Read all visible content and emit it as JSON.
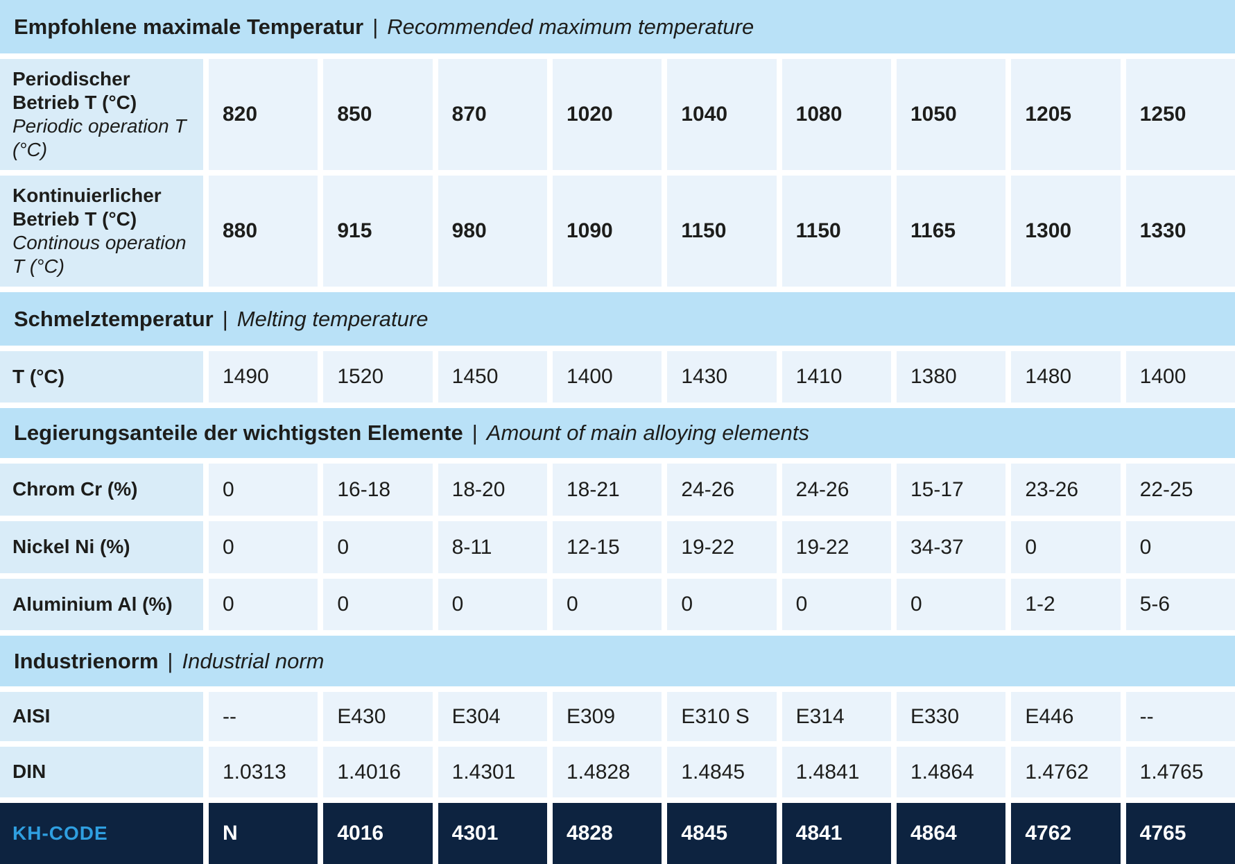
{
  "separator": "|",
  "colors": {
    "band_bg": "#b9e1f7",
    "label_bg": "#d9ecf8",
    "cell_bg": "#eaf3fb",
    "dark_row_bg": "#0d2340",
    "kh_code_label_blue": "#2f9fe0",
    "text": "#1d1d1b",
    "value_on_dark": "#ffffff"
  },
  "sections": [
    {
      "title_de": "Empfohlene maximale Temperatur",
      "title_en": "Recommended maximum temperature",
      "rows": [
        {
          "label_de": "Periodischer Betrieb T (°C)",
          "label_en": "Periodic operation T (°C)",
          "values_bold": true,
          "values": [
            "820",
            "850",
            "870",
            "1020",
            "1040",
            "1080",
            "1050",
            "1205",
            "1250"
          ]
        },
        {
          "label_de": "Kontinuierlicher Betrieb T (°C)",
          "label_en": "Continous operation T (°C)",
          "values_bold": true,
          "values": [
            "880",
            "915",
            "980",
            "1090",
            "1150",
            "1150",
            "1165",
            "1300",
            "1330"
          ]
        }
      ]
    },
    {
      "title_de": "Schmelztemperatur",
      "title_en": "Melting temperature",
      "rows": [
        {
          "label_de": "T (°C)",
          "label_en": "",
          "values_bold": false,
          "values": [
            "1490",
            "1520",
            "1450",
            "1400",
            "1430",
            "1410",
            "1380",
            "1480",
            "1400"
          ]
        }
      ]
    },
    {
      "title_de": "Legierungsanteile der wichtigsten Elemente",
      "title_en": "Amount of main alloying elements",
      "rows": [
        {
          "label_de": "Chrom Cr (%)",
          "label_en": "",
          "values_bold": false,
          "values": [
            "0",
            "16-18",
            "18-20",
            "18-21",
            "24-26",
            "24-26",
            "15-17",
            "23-26",
            "22-25"
          ]
        },
        {
          "label_de": "Nickel Ni (%)",
          "label_en": "",
          "values_bold": false,
          "values": [
            "0",
            "0",
            "8-11",
            "12-15",
            "19-22",
            "19-22",
            "34-37",
            "0",
            "0"
          ]
        },
        {
          "label_de": "Aluminium Al (%)",
          "label_en": "",
          "values_bold": false,
          "values": [
            "0",
            "0",
            "0",
            "0",
            "0",
            "0",
            "0",
            "1-2",
            "5-6"
          ]
        }
      ]
    },
    {
      "title_de": "Industrienorm",
      "title_en": "Industrial norm",
      "rows": [
        {
          "label_de": "AISI",
          "label_en": "",
          "values_bold": false,
          "values": [
            "--",
            "E430",
            "E304",
            "E309",
            "E310 S",
            "E314",
            "E330",
            "E446",
            "--"
          ]
        },
        {
          "label_de": "DIN",
          "label_en": "",
          "values_bold": false,
          "values": [
            "1.0313",
            "1.4016",
            "1.4301",
            "1.4828",
            "1.4845",
            "1.4841",
            "1.4864",
            "1.4762",
            "1.4765"
          ]
        }
      ]
    }
  ],
  "kh_code_row": {
    "label": "KH-CODE",
    "values": [
      "N",
      "4016",
      "4301",
      "4828",
      "4845",
      "4841",
      "4864",
      "4762",
      "4765"
    ]
  }
}
